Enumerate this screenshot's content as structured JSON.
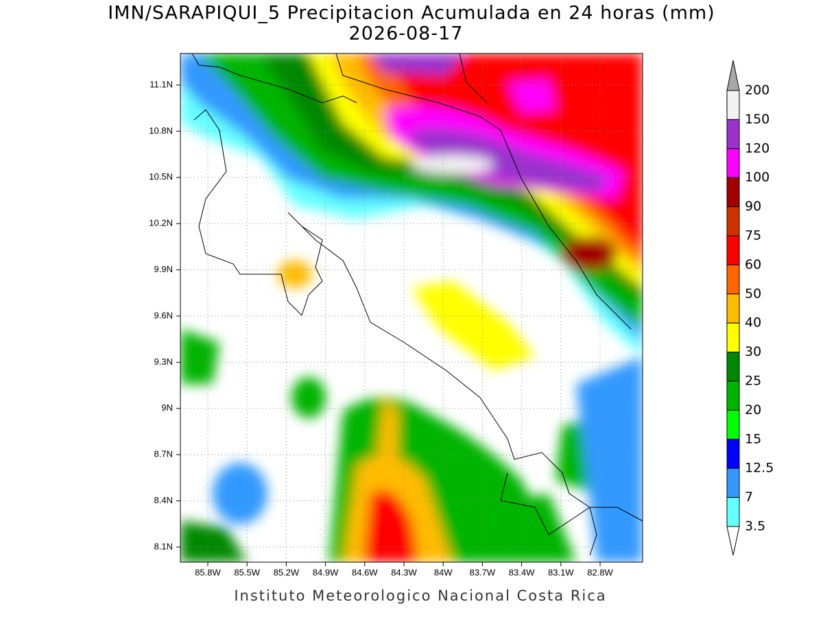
{
  "title": "IMN/SARAPIQUI_5 Precipitacion Acumulada en 24 horas (mm)",
  "subtitle": "2026-08-17",
  "lat_labels": [
    "11.1N",
    "10.8N",
    "10.5N",
    "10.2N",
    "9.9N",
    "9.6N",
    "9.3N",
    "9N",
    "8.7N",
    "8.4N",
    "8.1N"
  ],
  "lon_labels": [
    "85.8W",
    "85.5W",
    "85.2W",
    "84.9W",
    "84.6W",
    "84.3W",
    "84W",
    "83.7W",
    "83.4W",
    "83.1W",
    "82.8W"
  ],
  "legend": {
    "labels": [
      "200",
      "150",
      "120",
      "100",
      "90",
      "75",
      "60",
      "50",
      "40",
      "30",
      "25",
      "20",
      "15",
      "12.5",
      "7",
      "3.5"
    ],
    "colors": [
      "#a8a8a8",
      "#f2f2f2",
      "#9933cc",
      "#ff00ff",
      "#a00000",
      "#cc3300",
      "#ff0000",
      "#ff6600",
      "#ffbb00",
      "#ffff00",
      "#008800",
      "#00b400",
      "#00ff00",
      "#0000ff",
      "#3399ff",
      "#66ffff",
      "#ffffff"
    ]
  },
  "footer": "Instituto Meteorologico Nacional Costa Rica"
}
